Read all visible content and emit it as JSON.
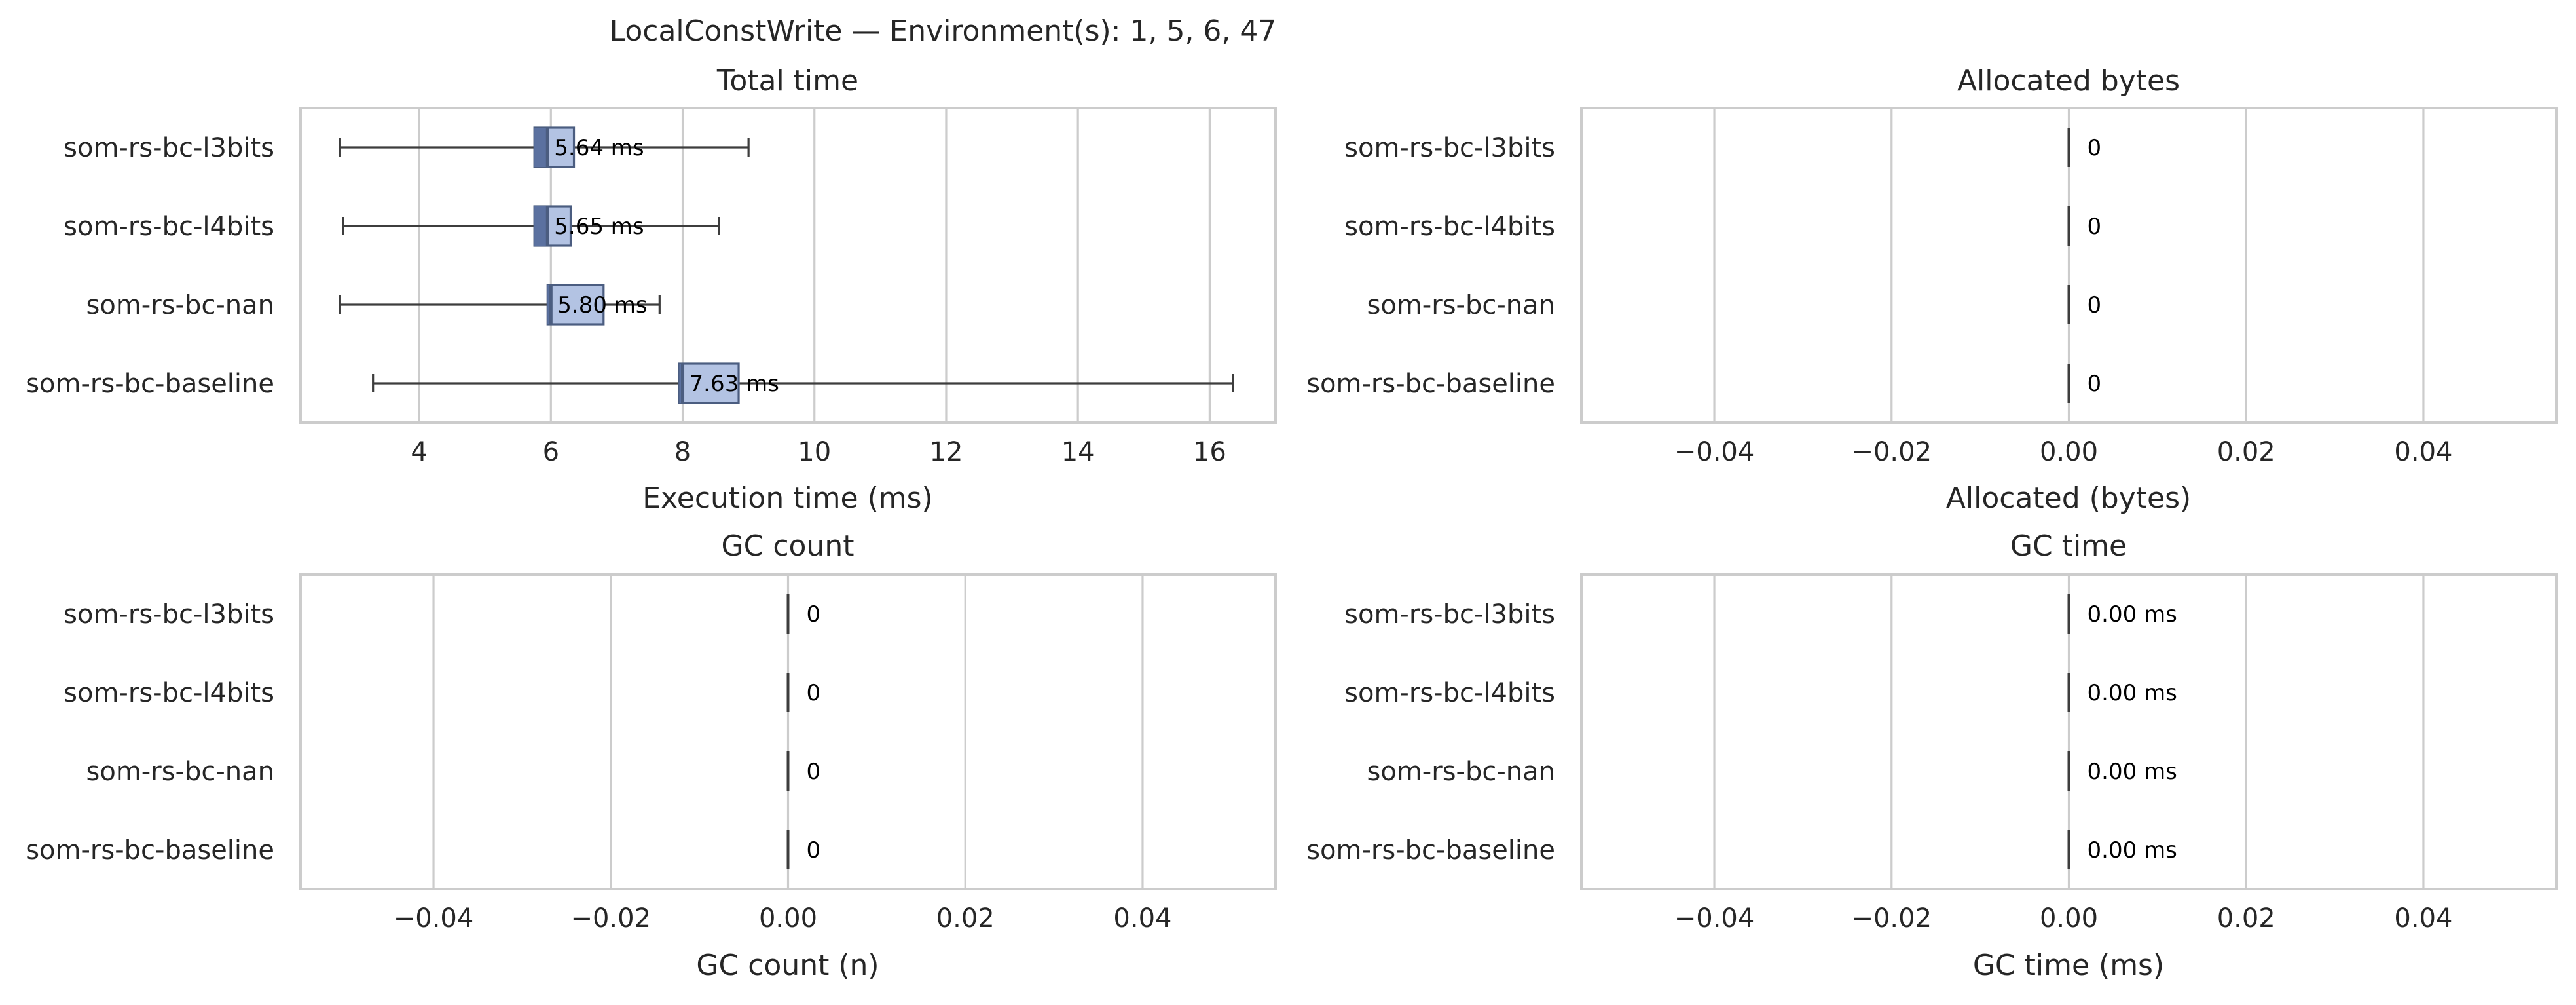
{
  "suptitle": "LocalConstWrite — Environment(s): 1, 5, 6, 47",
  "colors": {
    "box_fill": "#b3c3e3",
    "box_edge": "#4b5d80",
    "box_dark": "#5b71a0",
    "whisker": "#3d3d3d",
    "grid": "#cccccc"
  },
  "chart_data": [
    {
      "type": "box",
      "title": "Total time",
      "xlabel": "Execution time (ms)",
      "xlim": [
        2.2,
        17.0
      ],
      "xticks": [
        4,
        6,
        8,
        10,
        12,
        14,
        16
      ],
      "xtick_labels": [
        "4",
        "6",
        "8",
        "10",
        "12",
        "14",
        "16"
      ],
      "grid": true,
      "categories": [
        "som-rs-bc-l3bits",
        "som-rs-bc-l4bits",
        "som-rs-bc-nan",
        "som-rs-bc-baseline"
      ],
      "series": [
        {
          "whisker_low": 2.8,
          "q1": 5.75,
          "median": 5.95,
          "q3": 6.35,
          "whisker_high": 9.0,
          "label": "5.64 ms"
        },
        {
          "whisker_low": 2.85,
          "q1": 5.75,
          "median": 5.95,
          "q3": 6.3,
          "whisker_high": 8.55,
          "label": "5.65 ms"
        },
        {
          "whisker_low": 2.8,
          "q1": 5.95,
          "median": 6.0,
          "q3": 6.8,
          "whisker_high": 7.65,
          "label": "5.80 ms"
        },
        {
          "whisker_low": 3.3,
          "q1": 7.95,
          "median": 8.0,
          "q3": 8.85,
          "whisker_high": 16.35,
          "label": "7.63 ms"
        }
      ]
    },
    {
      "type": "box",
      "title": "Allocated bytes",
      "xlabel": "Allocated (bytes)",
      "xlim": [
        -0.055,
        0.055
      ],
      "xticks": [
        -0.04,
        -0.02,
        0.0,
        0.02,
        0.04
      ],
      "xtick_labels": [
        "−0.04",
        "−0.02",
        "0.00",
        "0.02",
        "0.04"
      ],
      "grid": true,
      "categories": [
        "som-rs-bc-l3bits",
        "som-rs-bc-l4bits",
        "som-rs-bc-nan",
        "som-rs-bc-baseline"
      ],
      "series": [
        {
          "whisker_low": 0,
          "q1": 0,
          "median": 0,
          "q3": 0,
          "whisker_high": 0,
          "label": "0"
        },
        {
          "whisker_low": 0,
          "q1": 0,
          "median": 0,
          "q3": 0,
          "whisker_high": 0,
          "label": "0"
        },
        {
          "whisker_low": 0,
          "q1": 0,
          "median": 0,
          "q3": 0,
          "whisker_high": 0,
          "label": "0"
        },
        {
          "whisker_low": 0,
          "q1": 0,
          "median": 0,
          "q3": 0,
          "whisker_high": 0,
          "label": "0"
        }
      ]
    },
    {
      "type": "box",
      "title": "GC count",
      "xlabel": "GC count (n)",
      "xlim": [
        -0.055,
        0.055
      ],
      "xticks": [
        -0.04,
        -0.02,
        0.0,
        0.02,
        0.04
      ],
      "xtick_labels": [
        "−0.04",
        "−0.02",
        "0.00",
        "0.02",
        "0.04"
      ],
      "grid": true,
      "categories": [
        "som-rs-bc-l3bits",
        "som-rs-bc-l4bits",
        "som-rs-bc-nan",
        "som-rs-bc-baseline"
      ],
      "series": [
        {
          "whisker_low": 0,
          "q1": 0,
          "median": 0,
          "q3": 0,
          "whisker_high": 0,
          "label": "0"
        },
        {
          "whisker_low": 0,
          "q1": 0,
          "median": 0,
          "q3": 0,
          "whisker_high": 0,
          "label": "0"
        },
        {
          "whisker_low": 0,
          "q1": 0,
          "median": 0,
          "q3": 0,
          "whisker_high": 0,
          "label": "0"
        },
        {
          "whisker_low": 0,
          "q1": 0,
          "median": 0,
          "q3": 0,
          "whisker_high": 0,
          "label": "0"
        }
      ]
    },
    {
      "type": "box",
      "title": "GC time",
      "xlabel": "GC time (ms)",
      "xlim": [
        -0.055,
        0.055
      ],
      "xticks": [
        -0.04,
        -0.02,
        0.0,
        0.02,
        0.04
      ],
      "xtick_labels": [
        "−0.04",
        "−0.02",
        "0.00",
        "0.02",
        "0.04"
      ],
      "grid": true,
      "categories": [
        "som-rs-bc-l3bits",
        "som-rs-bc-l4bits",
        "som-rs-bc-nan",
        "som-rs-bc-baseline"
      ],
      "series": [
        {
          "whisker_low": 0,
          "q1": 0,
          "median": 0,
          "q3": 0,
          "whisker_high": 0,
          "label": "0.00 ms"
        },
        {
          "whisker_low": 0,
          "q1": 0,
          "median": 0,
          "q3": 0,
          "whisker_high": 0,
          "label": "0.00 ms"
        },
        {
          "whisker_low": 0,
          "q1": 0,
          "median": 0,
          "q3": 0,
          "whisker_high": 0,
          "label": "0.00 ms"
        },
        {
          "whisker_low": 0,
          "q1": 0,
          "median": 0,
          "q3": 0,
          "whisker_high": 0,
          "label": "0.00 ms"
        }
      ]
    }
  ]
}
